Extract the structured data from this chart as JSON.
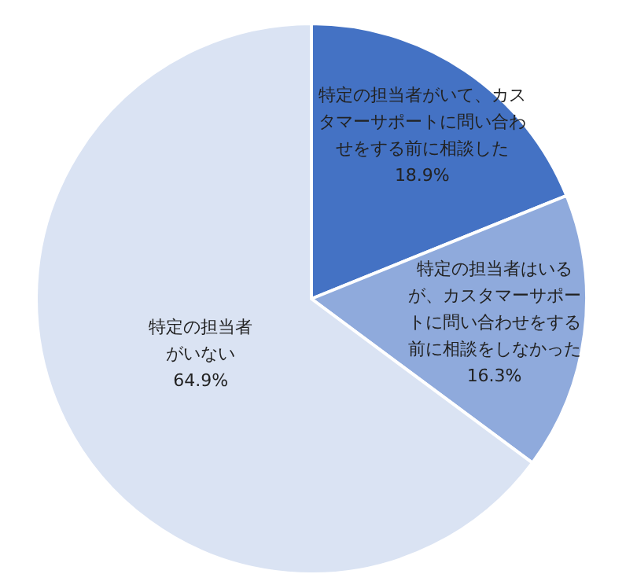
{
  "chart_data": {
    "type": "pie",
    "categories": [
      "特定の担当者がいて、カスタマーサポートに問い合わせをする前に相談した",
      "特定の担当者はいるが、カスタマーサポートに問い合わせをする前に相談をしなかった",
      "特定の担当者がいない"
    ],
    "values": [
      18.9,
      16.3,
      64.9
    ],
    "value_labels": [
      "18.9%",
      "16.3%",
      "64.9%"
    ],
    "colors": [
      "#4472c4",
      "#8faadc",
      "#dae3f3"
    ]
  }
}
